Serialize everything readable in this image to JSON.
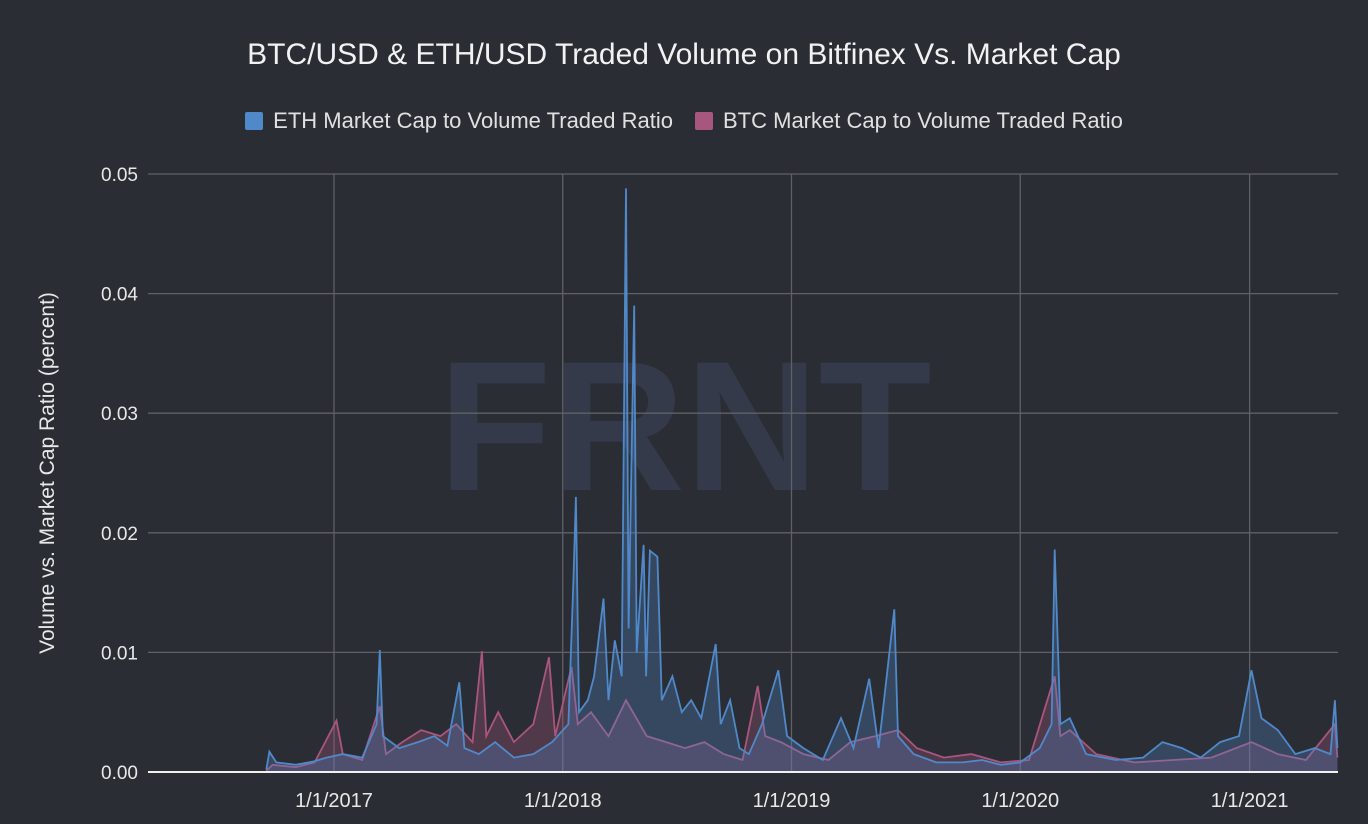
{
  "chart_data": {
    "type": "area",
    "title": "BTC/USD & ETH/USD Traded Volume on Bitfinex Vs. Market Cap",
    "xlabel": "",
    "ylabel": "Volume vs. Market Cap Ratio (percent)",
    "ylim": [
      0,
      0.05
    ],
    "yticks": [
      "0.00",
      "0.01",
      "0.02",
      "0.03",
      "0.04",
      "0.05"
    ],
    "xticks": [
      "1/1/2017",
      "1/1/2018",
      "1/1/2019",
      "1/1/2020",
      "1/1/2021"
    ],
    "xlim": [
      "2016-06-01",
      "2021-05-21"
    ],
    "grid": true,
    "legend_position": "top",
    "watermark": "FRNT",
    "series": [
      {
        "name": "ETH Market Cap to Volume Traded Ratio",
        "color": "#5089c9",
        "points": [
          [
            "2016-09-15",
            0.0002
          ],
          [
            "2016-09-20",
            0.0017
          ],
          [
            "2016-10-01",
            0.0008
          ],
          [
            "2016-11-01",
            0.0006
          ],
          [
            "2016-12-01",
            0.0009
          ],
          [
            "2016-12-20",
            0.0012
          ],
          [
            "2017-01-15",
            0.0015
          ],
          [
            "2017-02-15",
            0.0012
          ],
          [
            "2017-03-10",
            0.004
          ],
          [
            "2017-03-15",
            0.0102
          ],
          [
            "2017-03-20",
            0.003
          ],
          [
            "2017-04-15",
            0.002
          ],
          [
            "2017-05-15",
            0.0025
          ],
          [
            "2017-06-10",
            0.003
          ],
          [
            "2017-07-01",
            0.0022
          ],
          [
            "2017-07-20",
            0.0075
          ],
          [
            "2017-07-28",
            0.002
          ],
          [
            "2017-08-20",
            0.0015
          ],
          [
            "2017-09-15",
            0.0025
          ],
          [
            "2017-10-15",
            0.0012
          ],
          [
            "2017-11-15",
            0.0015
          ],
          [
            "2017-12-15",
            0.0025
          ],
          [
            "2018-01-10",
            0.004
          ],
          [
            "2018-01-18",
            0.016
          ],
          [
            "2018-01-22",
            0.023
          ],
          [
            "2018-01-27",
            0.005
          ],
          [
            "2018-02-10",
            0.006
          ],
          [
            "2018-02-20",
            0.008
          ],
          [
            "2018-03-07",
            0.0145
          ],
          [
            "2018-03-15",
            0.006
          ],
          [
            "2018-03-25",
            0.011
          ],
          [
            "2018-04-05",
            0.008
          ],
          [
            "2018-04-12",
            0.0488
          ],
          [
            "2018-04-16",
            0.012
          ],
          [
            "2018-04-25",
            0.039
          ],
          [
            "2018-04-29",
            0.01
          ],
          [
            "2018-05-10",
            0.019
          ],
          [
            "2018-05-14",
            0.008
          ],
          [
            "2018-05-20",
            0.0185
          ],
          [
            "2018-06-01",
            0.018
          ],
          [
            "2018-06-08",
            0.006
          ],
          [
            "2018-06-25",
            0.008
          ],
          [
            "2018-07-10",
            0.005
          ],
          [
            "2018-07-25",
            0.006
          ],
          [
            "2018-08-10",
            0.0045
          ],
          [
            "2018-09-02",
            0.0107
          ],
          [
            "2018-09-10",
            0.004
          ],
          [
            "2018-09-25",
            0.006
          ],
          [
            "2018-10-10",
            0.002
          ],
          [
            "2018-10-25",
            0.0015
          ],
          [
            "2018-11-15",
            0.004
          ],
          [
            "2018-12-11",
            0.0085
          ],
          [
            "2018-12-25",
            0.003
          ],
          [
            "2019-01-20",
            0.002
          ],
          [
            "2019-02-20",
            0.001
          ],
          [
            "2019-03-21",
            0.0045
          ],
          [
            "2019-04-10",
            0.002
          ],
          [
            "2019-05-05",
            0.0078
          ],
          [
            "2019-05-20",
            0.002
          ],
          [
            "2019-06-14",
            0.0136
          ],
          [
            "2019-06-20",
            0.003
          ],
          [
            "2019-07-15",
            0.0015
          ],
          [
            "2019-08-20",
            0.0008
          ],
          [
            "2019-10-01",
            0.0008
          ],
          [
            "2019-11-01",
            0.001
          ],
          [
            "2019-12-01",
            0.0006
          ],
          [
            "2020-01-01",
            0.0008
          ],
          [
            "2020-02-01",
            0.002
          ],
          [
            "2020-02-20",
            0.004
          ],
          [
            "2020-02-25",
            0.0186
          ],
          [
            "2020-03-05",
            0.004
          ],
          [
            "2020-03-20",
            0.0045
          ],
          [
            "2020-04-15",
            0.0015
          ],
          [
            "2020-06-01",
            0.001
          ],
          [
            "2020-07-15",
            0.0012
          ],
          [
            "2020-08-15",
            0.0025
          ],
          [
            "2020-09-15",
            0.002
          ],
          [
            "2020-10-15",
            0.0012
          ],
          [
            "2020-11-15",
            0.0025
          ],
          [
            "2020-12-15",
            0.003
          ],
          [
            "2021-01-04",
            0.0085
          ],
          [
            "2021-01-20",
            0.0045
          ],
          [
            "2021-02-15",
            0.0035
          ],
          [
            "2021-03-15",
            0.0015
          ],
          [
            "2021-04-15",
            0.002
          ],
          [
            "2021-05-10",
            0.0015
          ],
          [
            "2021-05-17",
            0.006
          ],
          [
            "2021-05-21",
            0.002
          ]
        ]
      },
      {
        "name": "BTC Market Cap to Volume Traded Ratio",
        "color": "#a9567e",
        "points": [
          [
            "2016-09-15",
            0.0001
          ],
          [
            "2016-09-25",
            0.0006
          ],
          [
            "2016-11-01",
            0.0004
          ],
          [
            "2016-12-01",
            0.0008
          ],
          [
            "2017-01-05",
            0.0043
          ],
          [
            "2017-01-15",
            0.0015
          ],
          [
            "2017-02-15",
            0.001
          ],
          [
            "2017-03-15",
            0.0055
          ],
          [
            "2017-03-25",
            0.0015
          ],
          [
            "2017-04-20",
            0.0025
          ],
          [
            "2017-05-20",
            0.0035
          ],
          [
            "2017-06-20",
            0.003
          ],
          [
            "2017-07-15",
            0.004
          ],
          [
            "2017-08-10",
            0.0025
          ],
          [
            "2017-08-25",
            0.0101
          ],
          [
            "2017-09-01",
            0.003
          ],
          [
            "2017-09-20",
            0.005
          ],
          [
            "2017-10-15",
            0.0025
          ],
          [
            "2017-11-15",
            0.004
          ],
          [
            "2017-12-10",
            0.0096
          ],
          [
            "2017-12-20",
            0.003
          ],
          [
            "2018-01-15",
            0.0088
          ],
          [
            "2018-01-25",
            0.004
          ],
          [
            "2018-02-15",
            0.005
          ],
          [
            "2018-03-15",
            0.003
          ],
          [
            "2018-04-12",
            0.006
          ],
          [
            "2018-05-15",
            0.003
          ],
          [
            "2018-06-15",
            0.0025
          ],
          [
            "2018-07-15",
            0.002
          ],
          [
            "2018-08-15",
            0.0025
          ],
          [
            "2018-09-15",
            0.0015
          ],
          [
            "2018-10-15",
            0.001
          ],
          [
            "2018-11-08",
            0.0072
          ],
          [
            "2018-11-20",
            0.003
          ],
          [
            "2018-12-15",
            0.0025
          ],
          [
            "2019-01-20",
            0.0015
          ],
          [
            "2019-03-01",
            0.001
          ],
          [
            "2019-04-05",
            0.0025
          ],
          [
            "2019-05-15",
            0.003
          ],
          [
            "2019-06-20",
            0.0035
          ],
          [
            "2019-07-20",
            0.002
          ],
          [
            "2019-09-01",
            0.0012
          ],
          [
            "2019-10-15",
            0.0015
          ],
          [
            "2019-12-01",
            0.0008
          ],
          [
            "2020-01-15",
            0.001
          ],
          [
            "2020-02-25",
            0.008
          ],
          [
            "2020-03-05",
            0.003
          ],
          [
            "2020-03-20",
            0.0035
          ],
          [
            "2020-05-01",
            0.0015
          ],
          [
            "2020-07-01",
            0.0008
          ],
          [
            "2020-09-01",
            0.001
          ],
          [
            "2020-11-01",
            0.0012
          ],
          [
            "2021-01-04",
            0.0025
          ],
          [
            "2021-02-15",
            0.0015
          ],
          [
            "2021-04-01",
            0.001
          ],
          [
            "2021-05-17",
            0.004
          ],
          [
            "2021-05-21",
            0.0012
          ]
        ]
      }
    ]
  }
}
